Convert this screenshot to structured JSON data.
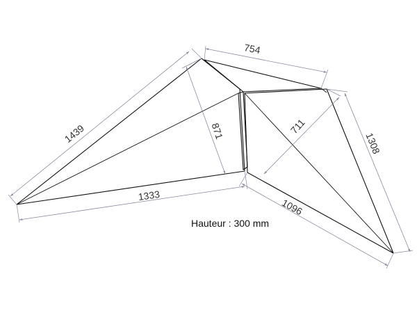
{
  "diagram": {
    "dimensions": {
      "left_outer_edge": "1439",
      "left_bottom_edge": "1333",
      "left_height": "871",
      "top_edge": "754",
      "right_outer_edge": "1308",
      "right_bottom_edge": "1096",
      "right_height": "711"
    },
    "note": "Hauteur : 300 mm",
    "colors": {
      "shape_stroke": "#111111",
      "dimension_stroke": "#8a8aa0",
      "text": "#333333"
    }
  }
}
